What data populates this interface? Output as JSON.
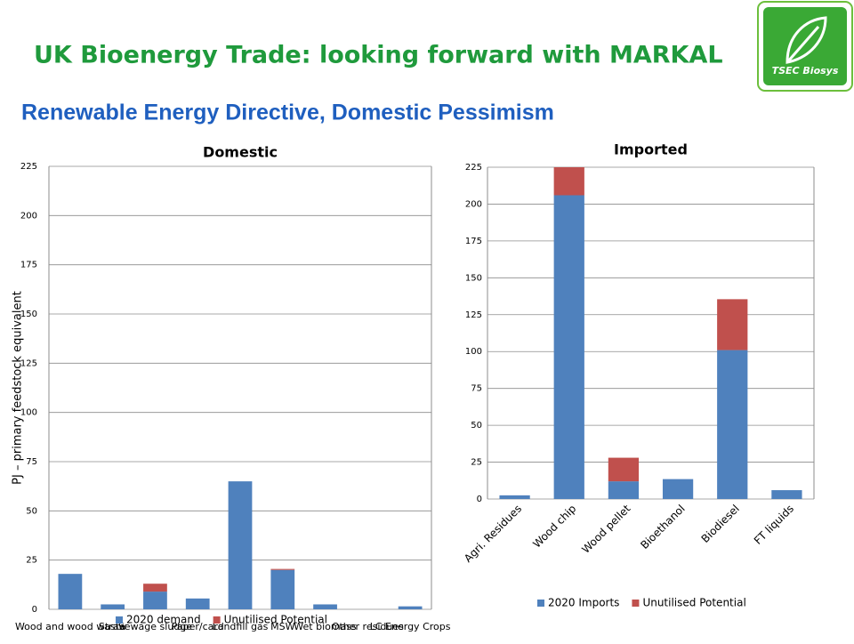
{
  "slide_title": "UK Bioenergy Trade: looking forward with MARKAL",
  "slide_subtitle": "Renewable Energy Directive, Domestic Pessimism",
  "logo_text": "TSEC Biosys",
  "chart_data": [
    {
      "type": "bar",
      "stacked": true,
      "title": "Domestic",
      "y_label": "PJ – primary feedstock equivalent",
      "categories": [
        "Wood and wood waste",
        "Straw",
        "Sewage sludge",
        "Paper/card",
        "Landfill gas",
        "MSW",
        "Wet biomass",
        "Other residues",
        "LC Energy Crops"
      ],
      "series": [
        {
          "name": "2020 demand",
          "color": "#4f81bd",
          "values": [
            18,
            2.5,
            9,
            5.5,
            65,
            20,
            2.5,
            0,
            1.5
          ]
        },
        {
          "name": "Unutilised Potential",
          "color": "#c0504d",
          "values": [
            0,
            0,
            4,
            0,
            0,
            0.5,
            0,
            0,
            0
          ]
        }
      ],
      "ylim": [
        0,
        225
      ],
      "yticks": [
        0,
        25,
        50,
        75,
        100,
        125,
        150,
        175,
        200,
        225
      ],
      "grid": true,
      "legend": "bottom"
    },
    {
      "type": "bar",
      "stacked": true,
      "title": "Imported",
      "categories": [
        "Agri. Residues",
        "Wood chip",
        "Wood pellet",
        "Bioethanol",
        "Biodiesel",
        "FT liquids"
      ],
      "series": [
        {
          "name": "2020 Imports",
          "color": "#4f81bd",
          "values": [
            2.5,
            206,
            12,
            13.5,
            101,
            6
          ]
        },
        {
          "name": "Unutilised Potential",
          "color": "#c0504d",
          "values": [
            0,
            19,
            16,
            0,
            34.5,
            0
          ]
        }
      ],
      "ylim": [
        0,
        225
      ],
      "yticks": [
        0,
        25,
        50,
        75,
        100,
        125,
        150,
        175,
        200,
        225
      ],
      "grid": true,
      "legend": "bottom"
    }
  ]
}
